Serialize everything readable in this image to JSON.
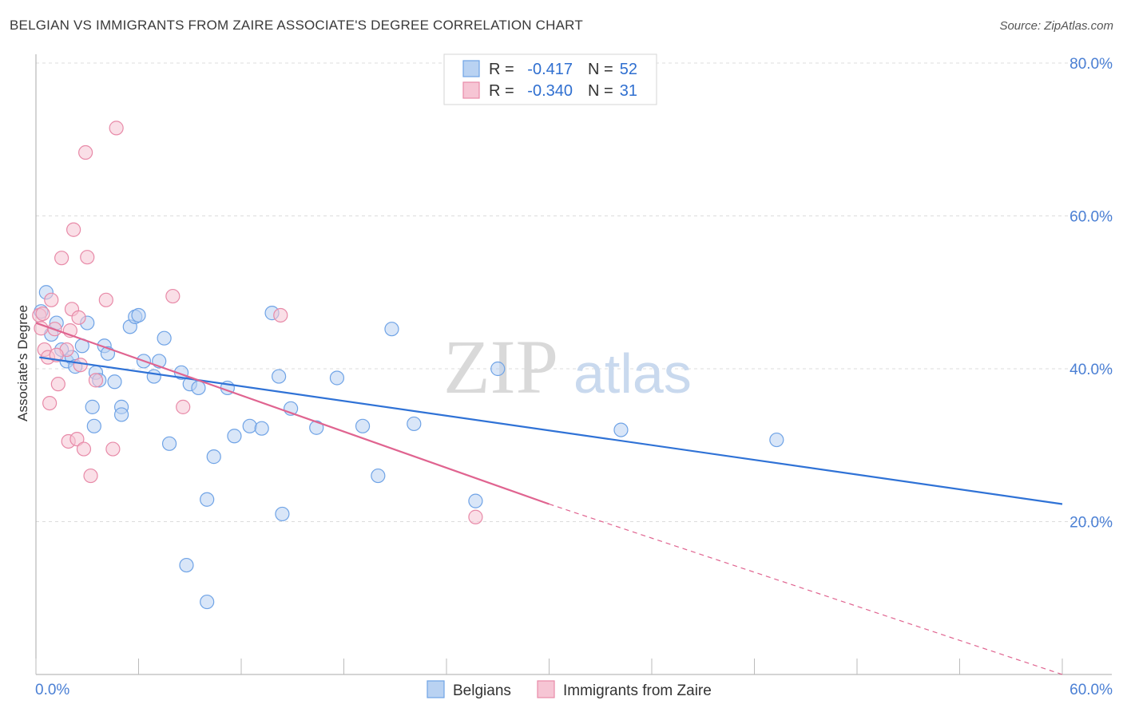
{
  "chart_data": {
    "type": "scatter",
    "title": "BELGIAN VS IMMIGRANTS FROM ZAIRE ASSOCIATE'S DEGREE CORRELATION CHART",
    "source": "Source: ZipAtlas.com",
    "ylabel": "Associate's Degree",
    "xlim": [
      0,
      60
    ],
    "ylim": [
      0,
      80
    ],
    "x_tick_labels": [
      "0.0%",
      "60.0%"
    ],
    "y_ticks": [
      {
        "value": 20,
        "label": "20.0%"
      },
      {
        "value": 40,
        "label": "40.0%"
      },
      {
        "value": 60,
        "label": "60.0%"
      },
      {
        "value": 80,
        "label": "80.0%"
      }
    ],
    "watermark": {
      "zip": "ZIP",
      "atlas": "atlas"
    },
    "series": [
      {
        "name": "Belgians",
        "color": "#6fa3e6",
        "fill": "#b9d2f2",
        "line_color": "#2f72d6",
        "R": "-0.417",
        "N": "52",
        "trend": {
          "x0": 0.2,
          "y0": 41.5,
          "x1": 60.0,
          "y1": 22.3
        },
        "points": [
          [
            0.3,
            47.5
          ],
          [
            0.6,
            50.0
          ],
          [
            0.9,
            44.5
          ],
          [
            1.2,
            46.0
          ],
          [
            1.5,
            42.5
          ],
          [
            1.8,
            41.0
          ],
          [
            2.1,
            41.5
          ],
          [
            2.3,
            40.3
          ],
          [
            2.7,
            43.0
          ],
          [
            3.0,
            46.0
          ],
          [
            3.3,
            35.0
          ],
          [
            3.5,
            39.5
          ],
          [
            3.7,
            38.5
          ],
          [
            4.0,
            43.0
          ],
          [
            4.2,
            42.0
          ],
          [
            4.6,
            38.3
          ],
          [
            5.0,
            35.0
          ],
          [
            5.5,
            45.5
          ],
          [
            5.8,
            46.8
          ],
          [
            6.0,
            47.0
          ],
          [
            6.3,
            41.0
          ],
          [
            6.9,
            39.0
          ],
          [
            7.2,
            41.0
          ],
          [
            7.5,
            44.0
          ],
          [
            7.8,
            30.2
          ],
          [
            8.5,
            39.5
          ],
          [
            9.0,
            38.0
          ],
          [
            9.5,
            37.5
          ],
          [
            10.4,
            28.5
          ],
          [
            11.2,
            37.5
          ],
          [
            11.6,
            31.2
          ],
          [
            12.5,
            32.5
          ],
          [
            13.8,
            47.3
          ],
          [
            14.2,
            39.0
          ],
          [
            14.9,
            34.8
          ],
          [
            16.4,
            32.3
          ],
          [
            17.6,
            38.8
          ],
          [
            19.1,
            32.5
          ],
          [
            20.0,
            26.0
          ],
          [
            20.8,
            45.2
          ],
          [
            22.1,
            32.8
          ],
          [
            25.7,
            22.7
          ],
          [
            27.0,
            40.0
          ],
          [
            34.2,
            32.0
          ],
          [
            43.3,
            30.7
          ],
          [
            3.4,
            32.5
          ],
          [
            5.0,
            34.0
          ],
          [
            13.2,
            32.2
          ],
          [
            14.4,
            21.0
          ],
          [
            10.0,
            22.9
          ],
          [
            8.8,
            14.3
          ],
          [
            10.0,
            9.5
          ]
        ]
      },
      {
        "name": "Immigrants from Zaire",
        "color": "#e88aa8",
        "fill": "#f6c5d4",
        "line_color": "#e06490",
        "R": "-0.340",
        "N": "31",
        "trend": {
          "x0": 0.0,
          "y0": 46.0,
          "x1": 30.0,
          "y1": 22.3
        },
        "trend_dashed_to": {
          "x": 60.0,
          "y": 0.0
        },
        "points": [
          [
            0.2,
            47.0
          ],
          [
            0.3,
            45.3
          ],
          [
            0.5,
            42.5
          ],
          [
            0.7,
            41.5
          ],
          [
            0.8,
            35.5
          ],
          [
            0.9,
            49.0
          ],
          [
            1.1,
            45.2
          ],
          [
            1.3,
            38.0
          ],
          [
            1.5,
            54.5
          ],
          [
            1.8,
            42.5
          ],
          [
            1.9,
            30.5
          ],
          [
            2.0,
            45.0
          ],
          [
            2.1,
            47.8
          ],
          [
            2.2,
            58.2
          ],
          [
            2.4,
            30.8
          ],
          [
            2.5,
            46.7
          ],
          [
            2.6,
            40.5
          ],
          [
            2.8,
            29.5
          ],
          [
            2.9,
            68.3
          ],
          [
            3.0,
            54.6
          ],
          [
            3.2,
            26.0
          ],
          [
            3.5,
            38.5
          ],
          [
            4.1,
            49.0
          ],
          [
            4.5,
            29.5
          ],
          [
            4.7,
            71.5
          ],
          [
            8.0,
            49.5
          ],
          [
            8.6,
            35.0
          ],
          [
            14.3,
            47.0
          ],
          [
            25.7,
            20.6
          ],
          [
            1.2,
            41.8
          ],
          [
            0.4,
            47.2
          ]
        ]
      }
    ]
  },
  "legend": {
    "rows": [
      {
        "r_label": "R =",
        "r_value": "-0.417",
        "n_label": "N =",
        "n_value": "52"
      },
      {
        "r_label": "R =",
        "r_value": "-0.340",
        "n_label": "N =",
        "n_value": "31"
      }
    ]
  },
  "bottom_legend": [
    "Belgians",
    "Immigrants from Zaire"
  ]
}
